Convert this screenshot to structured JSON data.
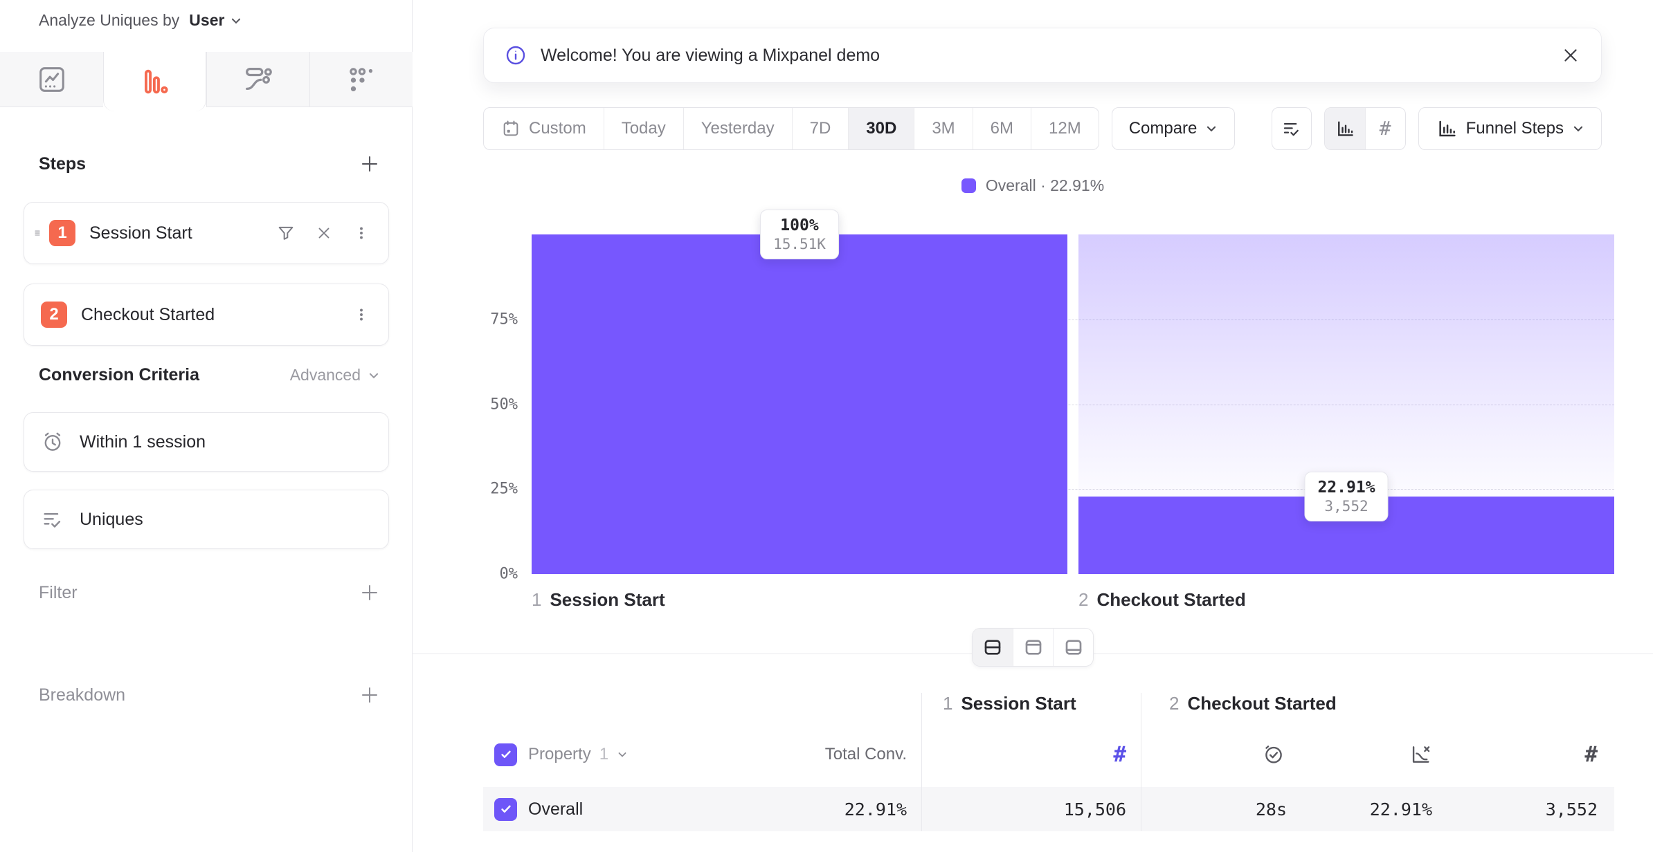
{
  "app": {
    "analyze_label": "Analyze Uniques by",
    "analyze_value": "User"
  },
  "sidebar": {
    "tabs": [
      {
        "icon": "insights-chart-icon",
        "active": false
      },
      {
        "icon": "funnel-chart-icon",
        "active": true
      },
      {
        "icon": "flows-icon",
        "active": false
      },
      {
        "icon": "retention-grid-icon",
        "active": false
      }
    ],
    "steps": {
      "title": "Steps",
      "items": [
        {
          "number": "1",
          "label": "Session Start"
        },
        {
          "number": "2",
          "label": "Checkout Started"
        }
      ]
    },
    "conversion_criteria": {
      "title": "Conversion Criteria",
      "advanced_label": "Advanced",
      "items": [
        {
          "icon": "alarm-clock-icon",
          "label": "Within 1 session"
        },
        {
          "icon": "list-check-icon",
          "label": "Uniques"
        }
      ]
    },
    "filter": {
      "title": "Filter"
    },
    "breakdown": {
      "title": "Breakdown"
    }
  },
  "banner": {
    "icon": "info-circle-icon",
    "text": "Welcome! You are viewing a Mixpanel demo"
  },
  "toolbar": {
    "date_ranges": [
      "Custom",
      "Today",
      "Yesterday",
      "7D",
      "30D",
      "3M",
      "6M",
      "12M"
    ],
    "active_range": "30D",
    "compare_label": "Compare",
    "funnel_steps_label": "Funnel Steps"
  },
  "chart_data": {
    "type": "bar",
    "title": "Funnel steps conversion",
    "legend": "Overall · 22.91%",
    "legend_position": "top-center",
    "grid": "dashed-horizontal",
    "categories": [
      "1 Session Start",
      "2 Checkout Started"
    ],
    "x_labels": [
      {
        "num": "1",
        "label": "Session Start"
      },
      {
        "num": "2",
        "label": "Checkout Started"
      }
    ],
    "series": [
      {
        "name": "Overall",
        "values_pct": [
          100,
          22.91
        ],
        "counts": [
          15506,
          3552
        ]
      }
    ],
    "point_labels": [
      {
        "pct": "100%",
        "count": "15.51K"
      },
      {
        "pct": "22.91%",
        "count": "3,552"
      }
    ],
    "y_ticks": [
      {
        "label": "0%",
        "value": 0
      },
      {
        "label": "25%",
        "value": 25
      },
      {
        "label": "50%",
        "value": 50
      },
      {
        "label": "75%",
        "value": 75
      }
    ],
    "ylim": [
      0,
      100
    ]
  },
  "layout_toggle": {
    "options": [
      "split-view",
      "top-view",
      "bottom-view"
    ],
    "active": "split-view"
  },
  "table": {
    "property_label": "Property",
    "property_index": "1",
    "total_conv_header": "Total Conv.",
    "groups": [
      {
        "num": "1",
        "label": "Session Start",
        "metric_icons": [
          "hash-icon"
        ]
      },
      {
        "num": "2",
        "label": "Checkout Started",
        "metric_icons": [
          "clock-check-icon",
          "funnel-loss-icon",
          "hash-icon"
        ]
      }
    ],
    "rows": [
      {
        "label": "Overall",
        "selected": true,
        "total_conv": "22.91%",
        "session_start_count": "15,506",
        "checkout_avg_time": "28s",
        "checkout_conv": "22.91%",
        "checkout_count": "3,552"
      }
    ]
  },
  "colors": {
    "bar_purple": "#7757FE",
    "accent_coral": "#F5694F",
    "checkbox_purple": "#6E56F8",
    "active_metric_purple": "#5B51E8"
  }
}
